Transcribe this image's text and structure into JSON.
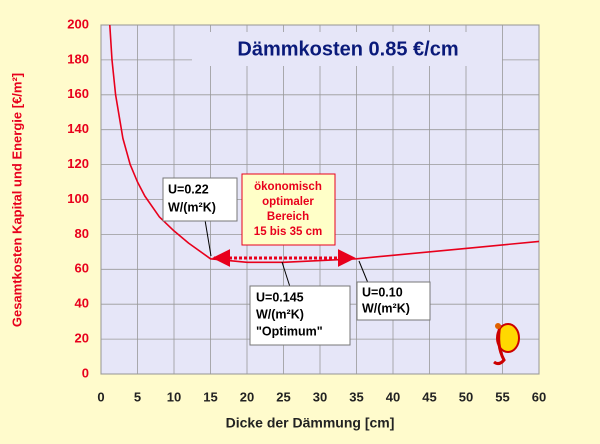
{
  "chart_data": {
    "type": "line",
    "title": "Dämmkosten 0.85 €/cm",
    "x_label": "Dicke der Dämmung   [cm]",
    "y_label": "Gesamtkosten Kapital und Energie  [€/m²]",
    "x": [
      1.2,
      1.5,
      2,
      3,
      4,
      5,
      6,
      8,
      10,
      12,
      15,
      20,
      25,
      30,
      35,
      40,
      50,
      60
    ],
    "series": [
      {
        "color": "#e8001c",
        "values": [
          200,
          180,
          160,
          135,
          120,
          110,
          102,
          90,
          82,
          75,
          66,
          64,
          64,
          65,
          66,
          68,
          72,
          76
        ]
      }
    ],
    "xlim": [
      0,
      60
    ],
    "xticks": [
      0,
      5,
      10,
      15,
      20,
      25,
      30,
      35,
      40,
      45,
      50,
      55,
      60
    ],
    "ylim": [
      0,
      200
    ],
    "yticks": [
      0,
      20,
      40,
      60,
      80,
      100,
      120,
      140,
      160,
      180,
      200
    ],
    "grid": true,
    "annotations": {
      "u022": [
        "U=0.22",
        "W/(m²K)"
      ],
      "range": [
        "ökonomisch",
        "optimaler",
        "Bereich",
        "15 bis 35 cm"
      ],
      "u0145": [
        "U=0.145",
        "W/(m²K)",
        "\"Optimum\""
      ],
      "u010": [
        "U=0.10",
        "W/(m²K)"
      ]
    }
  }
}
